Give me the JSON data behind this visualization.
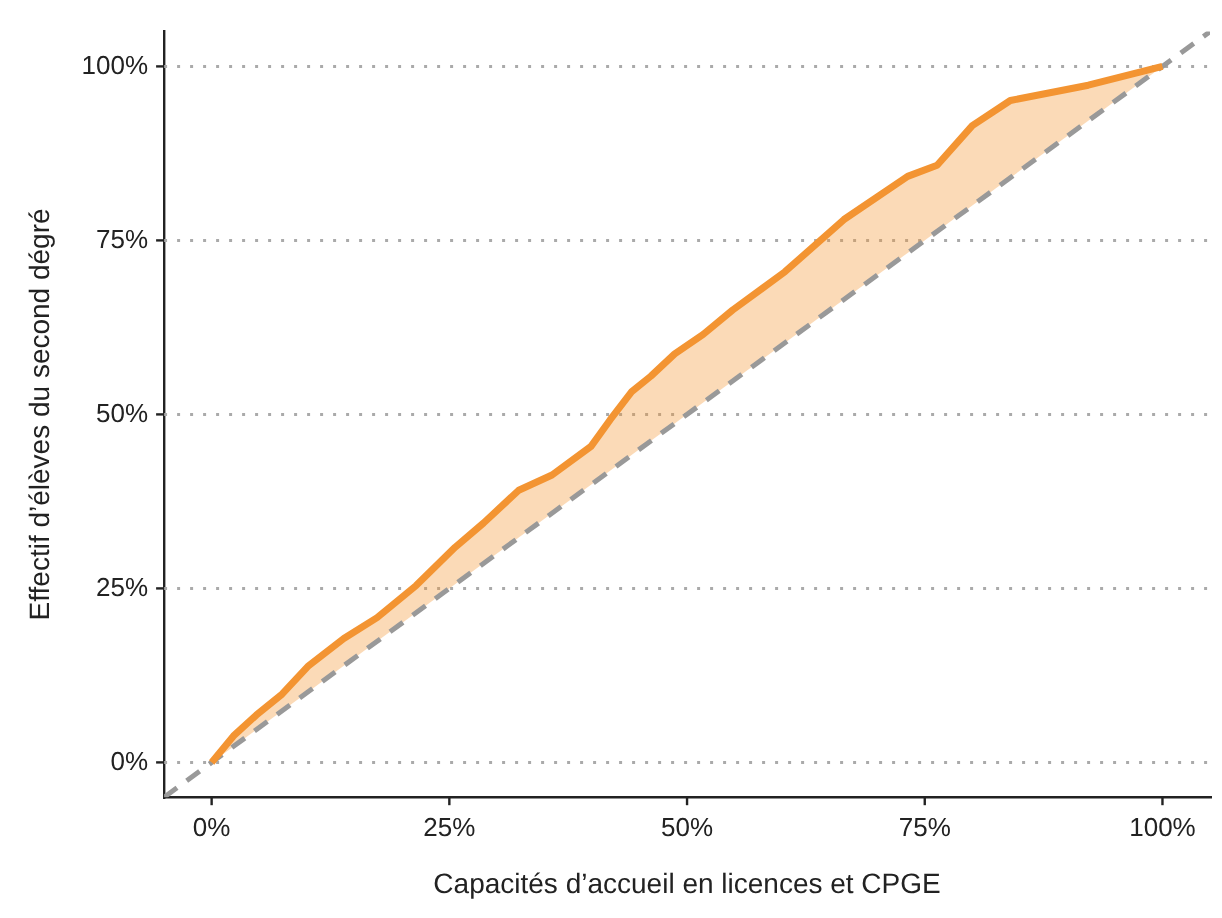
{
  "chart_data": {
    "type": "line",
    "xlabel": "Capacités d’accueil en licences et CPGE",
    "ylabel": "Effectif d’élèves du second dégré",
    "series": [
      {
        "color": "#f39432",
        "line_style": "solid",
        "x": [
          0,
          2.3,
          4.7,
          7.4,
          10.2,
          13.9,
          17.4,
          21.5,
          25.6,
          28.6,
          32.3,
          35.8,
          39.9,
          41.9,
          44.2,
          46.2,
          48.7,
          51.7,
          54.8,
          60.3,
          66.5,
          73.2,
          76.3,
          80,
          84,
          92.2,
          100
        ],
        "values": [
          0,
          3.8,
          6.8,
          9.8,
          13.9,
          17.8,
          20.8,
          25.4,
          30.9,
          34.4,
          39.1,
          41.3,
          45.4,
          49.2,
          53.3,
          55.5,
          58.7,
          61.5,
          65,
          70.5,
          78,
          84.2,
          85.8,
          91.5,
          95.1,
          97.3,
          100
        ],
        "lower": [
          0,
          2.3,
          4.7,
          7.4,
          10.2,
          13.9,
          17.4,
          21.5,
          25.6,
          28.6,
          32.3,
          35.8,
          39.9,
          41.9,
          44.2,
          46.2,
          48.7,
          51.7,
          54.8,
          60.3,
          66.5,
          73.2,
          76.3,
          80,
          84,
          92.2,
          100
        ],
        "upper": [
          0,
          3.8,
          6.8,
          9.8,
          13.9,
          17.8,
          20.8,
          25.4,
          30.9,
          34.4,
          39.1,
          41.3,
          45.4,
          49.2,
          53.3,
          55.5,
          58.7,
          61.5,
          65,
          70.5,
          78,
          84.2,
          85.8,
          91.5,
          95.1,
          97.3,
          100
        ]
      },
      {
        "color": "#999999",
        "line_style": "dashed",
        "x": [
          -5,
          105
        ],
        "values": [
          -5,
          105
        ]
      }
    ],
    "xlim": [
      -5,
      105
    ],
    "ylim": [
      -5,
      105
    ],
    "xticks": [
      {
        "value": 0,
        "label": "0%"
      },
      {
        "value": 25,
        "label": "25%"
      },
      {
        "value": 50,
        "label": "50%"
      },
      {
        "value": 75,
        "label": "75%"
      },
      {
        "value": 100,
        "label": "100%"
      }
    ],
    "yticks": [
      {
        "value": 0,
        "label": "0%"
      },
      {
        "value": 25,
        "label": "25%"
      },
      {
        "value": 50,
        "label": "50%"
      },
      {
        "value": 75,
        "label": "75%"
      },
      {
        "value": 100,
        "label": "100%"
      }
    ],
    "grid": "y",
    "legend": false,
    "marker": "none"
  }
}
